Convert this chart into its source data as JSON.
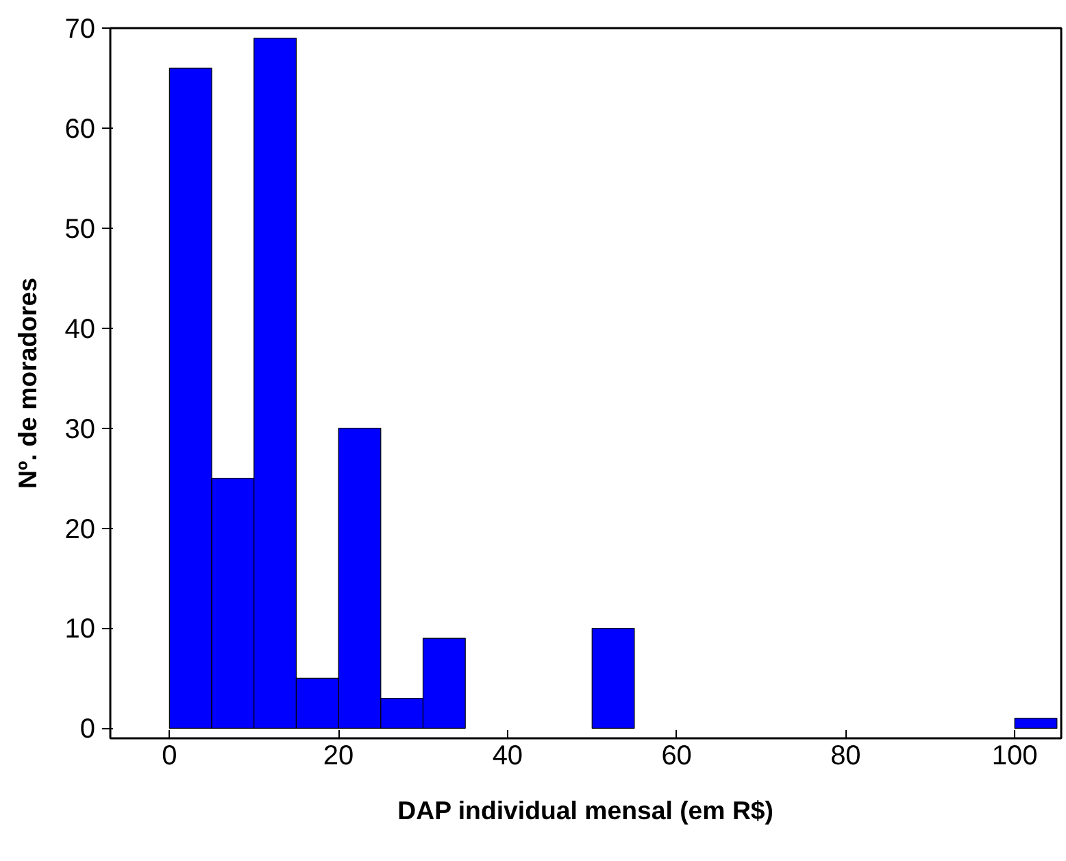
{
  "chart_data": {
    "type": "histogram",
    "xlabel": "DAP individual mensal (em R$)",
    "ylabel": "Nº. de moradores",
    "bins": [
      0,
      5,
      10,
      15,
      20,
      25,
      30,
      35,
      40,
      45,
      50,
      55,
      60,
      65,
      70,
      75,
      80,
      85,
      90,
      95,
      100,
      105
    ],
    "values": [
      66,
      25,
      69,
      5,
      30,
      3,
      9,
      0,
      0,
      0,
      10,
      0,
      0,
      0,
      0,
      0,
      0,
      0,
      0,
      0,
      1
    ],
    "color": "#0000ff",
    "xlim": [
      -7,
      105.5
    ],
    "ylim": [
      -1,
      70
    ],
    "xticks": [
      0,
      20,
      40,
      60,
      80,
      100
    ],
    "yticks": [
      0,
      10,
      20,
      30,
      40,
      50,
      60,
      70
    ],
    "grid": false
  }
}
